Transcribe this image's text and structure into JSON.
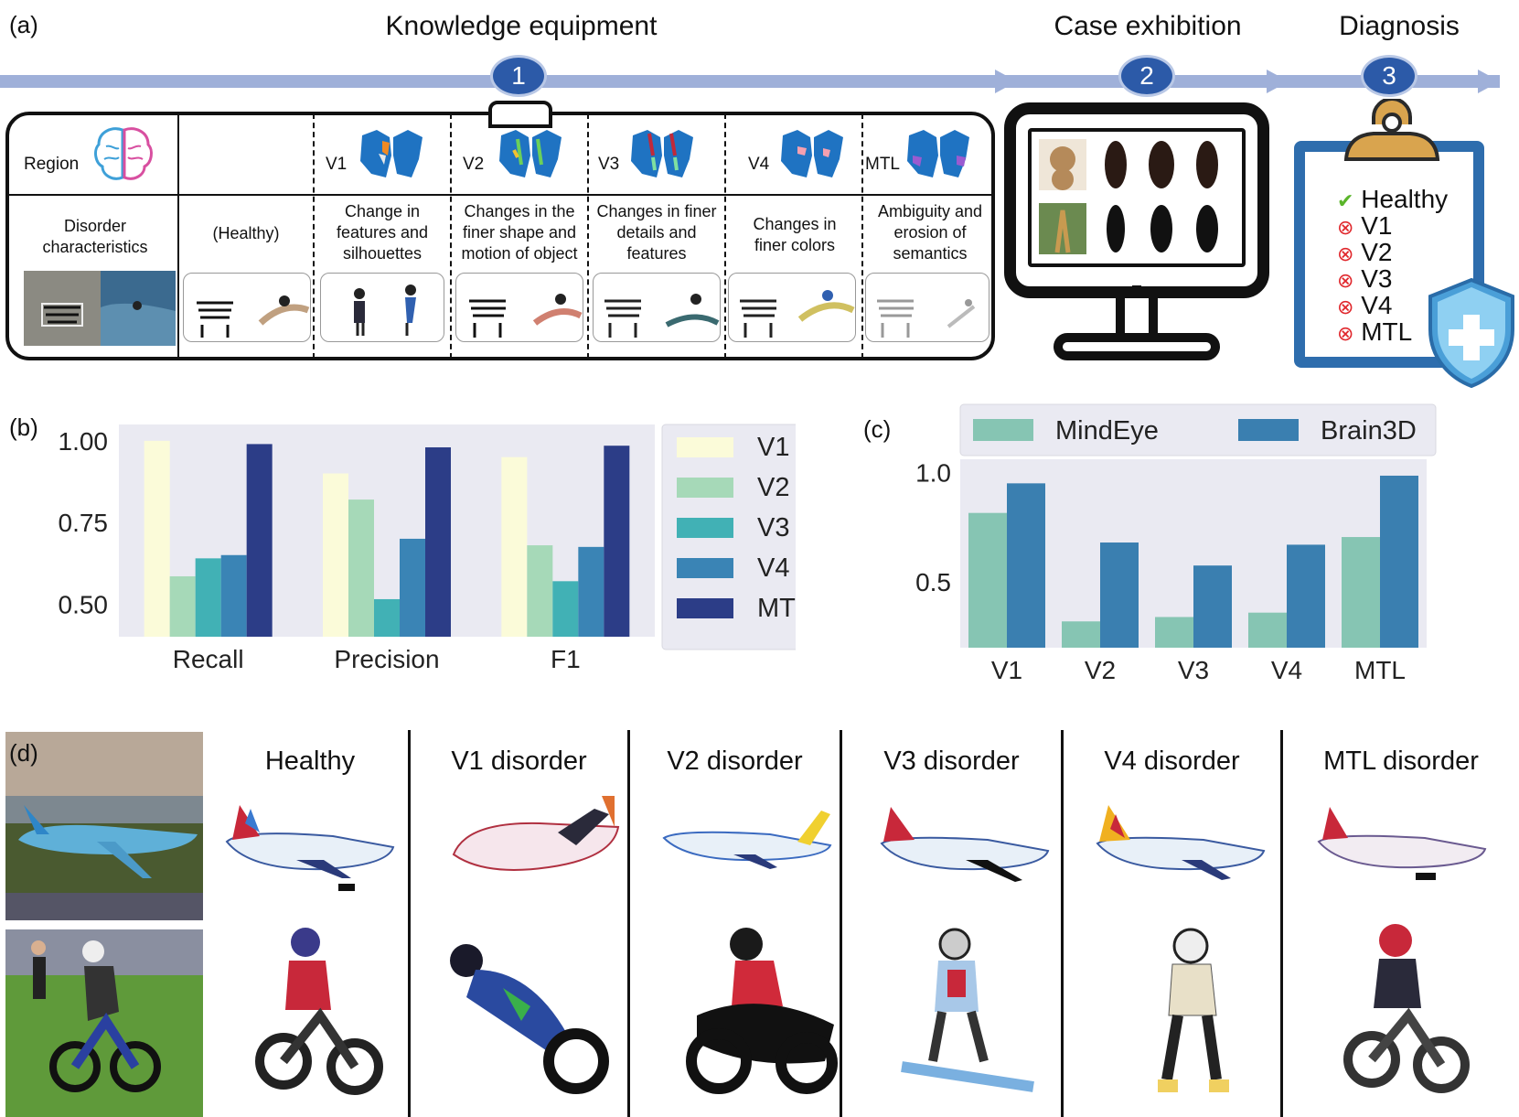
{
  "panel_labels": {
    "a": "(a)",
    "b": "(b)",
    "c": "(c)",
    "d": "(d)"
  },
  "panel_a": {
    "stages": [
      {
        "title": "Knowledge equipment",
        "step": "1"
      },
      {
        "title": "Case exhibition",
        "step": "2"
      },
      {
        "title": "Diagnosis",
        "step": "3"
      }
    ],
    "region_label": "Region",
    "disorder_label": "Disorder characteristics",
    "regions": [
      {
        "name": "",
        "desc": "(Healthy)"
      },
      {
        "name": "V1",
        "desc": "Change in features and silhouettes"
      },
      {
        "name": "V2",
        "desc": "Changes in the finer shape and motion of object"
      },
      {
        "name": "V3",
        "desc": "Changes in finer details and features"
      },
      {
        "name": "V4",
        "desc": "Changes in finer colors"
      },
      {
        "name": "MTL",
        "desc": "Ambiguity and erosion of semantics"
      }
    ],
    "diagnosis": [
      {
        "label": "Healthy",
        "status": "check"
      },
      {
        "label": "V1",
        "status": "cross"
      },
      {
        "label": "V2",
        "status": "cross"
      },
      {
        "label": "V3",
        "status": "cross"
      },
      {
        "label": "V4",
        "status": "cross"
      },
      {
        "label": "MTL",
        "status": "cross"
      }
    ],
    "colors": {
      "timeline": "#9fb0d9",
      "step": "#2c5aa8",
      "brain": "#1f73c2",
      "clipboard": "#2e6dad",
      "clip_top": "#d9a44e",
      "shield": "#4a9fd8"
    }
  },
  "chart_data": [
    {
      "type": "bar",
      "categories": [
        "Recall",
        "Precision",
        "F1"
      ],
      "series": [
        {
          "name": "V1",
          "color": "#fbfbd9",
          "values": [
            1.0,
            0.9,
            0.95
          ]
        },
        {
          "name": "V2",
          "color": "#a6d9b8",
          "values": [
            0.585,
            0.82,
            0.68
          ]
        },
        {
          "name": "V3",
          "color": "#41b1b5",
          "values": [
            0.64,
            0.515,
            0.57
          ]
        },
        {
          "name": "V4",
          "color": "#3a84b5",
          "values": [
            0.65,
            0.7,
            0.675
          ]
        },
        {
          "name": "MTL",
          "color": "#2c3d87",
          "values": [
            0.99,
            0.98,
            0.985
          ]
        }
      ],
      "ylim": [
        0.4,
        1.05
      ],
      "yticks": [
        "0.50",
        "0.75",
        "1.00"
      ],
      "ytick_values": [
        0.5,
        0.75,
        1.0
      ],
      "grid": false,
      "legend_position": "right"
    },
    {
      "type": "bar",
      "categories": [
        "V1",
        "V2",
        "V3",
        "V4",
        "MTL"
      ],
      "series": [
        {
          "name": "MindEye",
          "color": "#86c5b3",
          "values": [
            0.815,
            0.32,
            0.34,
            0.36,
            0.705
          ]
        },
        {
          "name": "Brain3D",
          "color": "#3a7fb0",
          "values": [
            0.95,
            0.68,
            0.575,
            0.67,
            0.985
          ]
        }
      ],
      "ylim": [
        0.2,
        1.06
      ],
      "yticks": [
        "0.5",
        "1.0"
      ],
      "ytick_values": [
        0.5,
        1.0
      ],
      "grid": false,
      "legend_position": "top"
    }
  ],
  "panel_d": {
    "columns": [
      "Healthy",
      "V1 disorder",
      "V2 disorder",
      "V3 disorder",
      "V4 disorder",
      "MTL disorder"
    ]
  }
}
